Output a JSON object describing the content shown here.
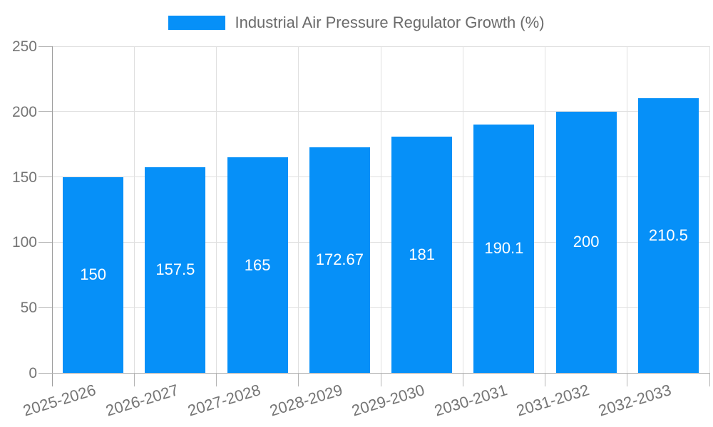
{
  "legend": {
    "label": "Industrial Air Pressure Regulator Growth (%)"
  },
  "chart_data": {
    "type": "bar",
    "legend": [
      "Industrial Air Pressure Regulator Growth (%)"
    ],
    "legend_position": "top",
    "categories": [
      "2025-2026",
      "2026-2027",
      "2027-2028",
      "2028-2029",
      "2029-2030",
      "2030-2031",
      "2031-2032",
      "2032-2033"
    ],
    "values": [
      150,
      157.5,
      165,
      172.67,
      181,
      190.1,
      200,
      210.5
    ],
    "value_labels": [
      "150",
      "157.5",
      "165",
      "172.67",
      "181",
      "190.1",
      "200",
      "210.5"
    ],
    "ylim": [
      0,
      250
    ],
    "yticks": [
      0,
      50,
      100,
      150,
      200,
      250
    ],
    "ytick_labels": [
      "0",
      "50",
      "100",
      "150",
      "200",
      "250"
    ],
    "grid": true,
    "colors": {
      "bar": "#0690f8",
      "value_label": "#ffffff",
      "legend_text": "#6b6b6b",
      "axis_label": "#757575",
      "gridline": "#e0e0e0",
      "axis_line": "#9e9e9e",
      "tick": "#b5b5b5",
      "baseline": "#b3b3b3"
    }
  }
}
